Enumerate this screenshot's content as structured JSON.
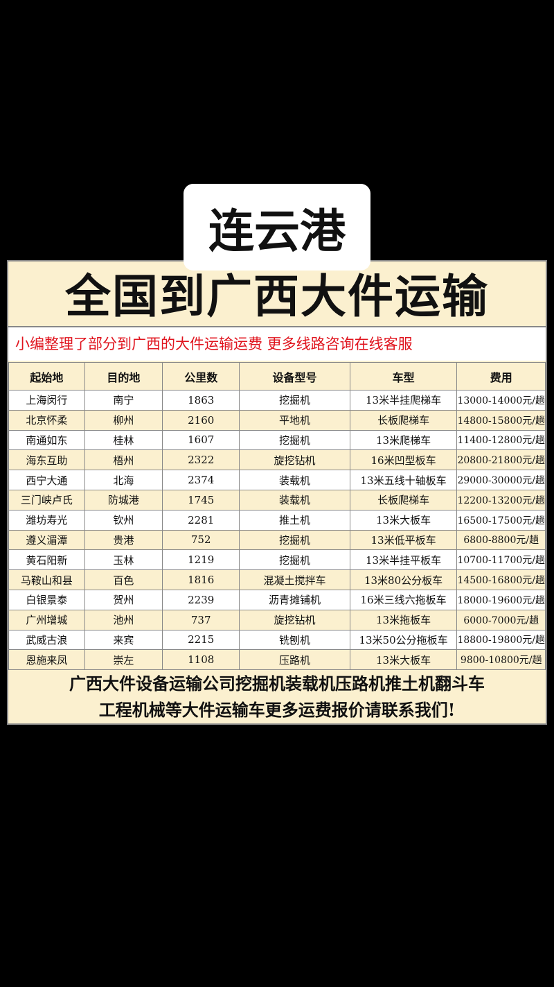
{
  "city_label": "连云港",
  "title": "全国到广西大件运输",
  "subtitle": "小编整理了部分到广西的大件运输运费 更多线路咨询在线客服",
  "table": {
    "headers": [
      "起始地",
      "目的地",
      "公里数",
      "设备型号",
      "车型",
      "费用"
    ],
    "rows": [
      [
        "上海闵行",
        "南宁",
        "1863",
        "挖掘机",
        "13米半挂爬梯车",
        "13000-14000元/趟"
      ],
      [
        "北京怀柔",
        "柳州",
        "2160",
        "平地机",
        "长板爬梯车",
        "14800-15800元/趟"
      ],
      [
        "南通如东",
        "桂林",
        "1607",
        "挖掘机",
        "13米爬梯车",
        "11400-12800元/趟"
      ],
      [
        "海东互助",
        "梧州",
        "2322",
        "旋挖钻机",
        "16米凹型板车",
        "20800-21800元/趟"
      ],
      [
        "西宁大通",
        "北海",
        "2374",
        "装载机",
        "13米五线十轴板车",
        "29000-30000元/趟"
      ],
      [
        "三门峡卢氏",
        "防城港",
        "1745",
        "装载机",
        "长板爬梯车",
        "12200-13200元/趟"
      ],
      [
        "潍坊寿光",
        "钦州",
        "2281",
        "推土机",
        "13米大板车",
        "16500-17500元/趟"
      ],
      [
        "遵义湄潭",
        "贵港",
        "752",
        "挖掘机",
        "13米低平板车",
        "6800-8800元/趟"
      ],
      [
        "黄石阳新",
        "玉林",
        "1219",
        "挖掘机",
        "13米半挂平板车",
        "10700-11700元/趟"
      ],
      [
        "马鞍山和县",
        "百色",
        "1816",
        "混凝土搅拌车",
        "13米80公分板车",
        "14500-16800元/趟"
      ],
      [
        "白银景泰",
        "贺州",
        "2239",
        "沥青摊铺机",
        "16米三线六拖板车",
        "18000-19600元/趟"
      ],
      [
        "广州增城",
        "池州",
        "737",
        "旋挖钻机",
        "13米拖板车",
        "6000-7000元/趟"
      ],
      [
        "武威古浪",
        "来宾",
        "2215",
        "铣刨机",
        "13米50公分拖板车",
        "18800-19800元/趟"
      ],
      [
        "恩施来凤",
        "崇左",
        "1108",
        "压路机",
        "13米大板车",
        "9800-10800元/趟"
      ]
    ]
  },
  "footer": [
    "广西大件设备运输公司挖掘机装载机压路机推土机翻斗车",
    "工程机械等大件运输车更多运费报价请联系我们!"
  ]
}
